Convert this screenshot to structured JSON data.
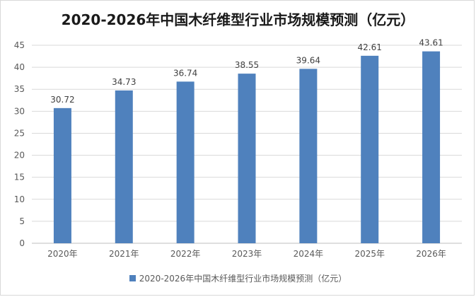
{
  "chart_data": {
    "type": "bar",
    "title": "2020-2026年中国木纤维型行业市场规模预测（亿元）",
    "categories": [
      "2020年",
      "2021年",
      "2022年",
      "2023年",
      "2024年",
      "2025年",
      "2026年"
    ],
    "series": [
      {
        "name": "2020-2026年中国木纤维型行业市场规模预测（亿元）",
        "values": [
          30.72,
          34.73,
          36.74,
          38.55,
          39.64,
          42.61,
          43.61
        ],
        "color": "#4f81bd"
      }
    ],
    "value_labels": [
      "30.72",
      "34.73",
      "36.74",
      "38.55",
      "39.64",
      "42.61",
      "43.61"
    ],
    "yticks": [
      "0",
      "5",
      "10",
      "15",
      "20",
      "25",
      "30",
      "35",
      "40",
      "45"
    ],
    "ylim": [
      0,
      45
    ],
    "grid": true,
    "legend": "bottom"
  }
}
